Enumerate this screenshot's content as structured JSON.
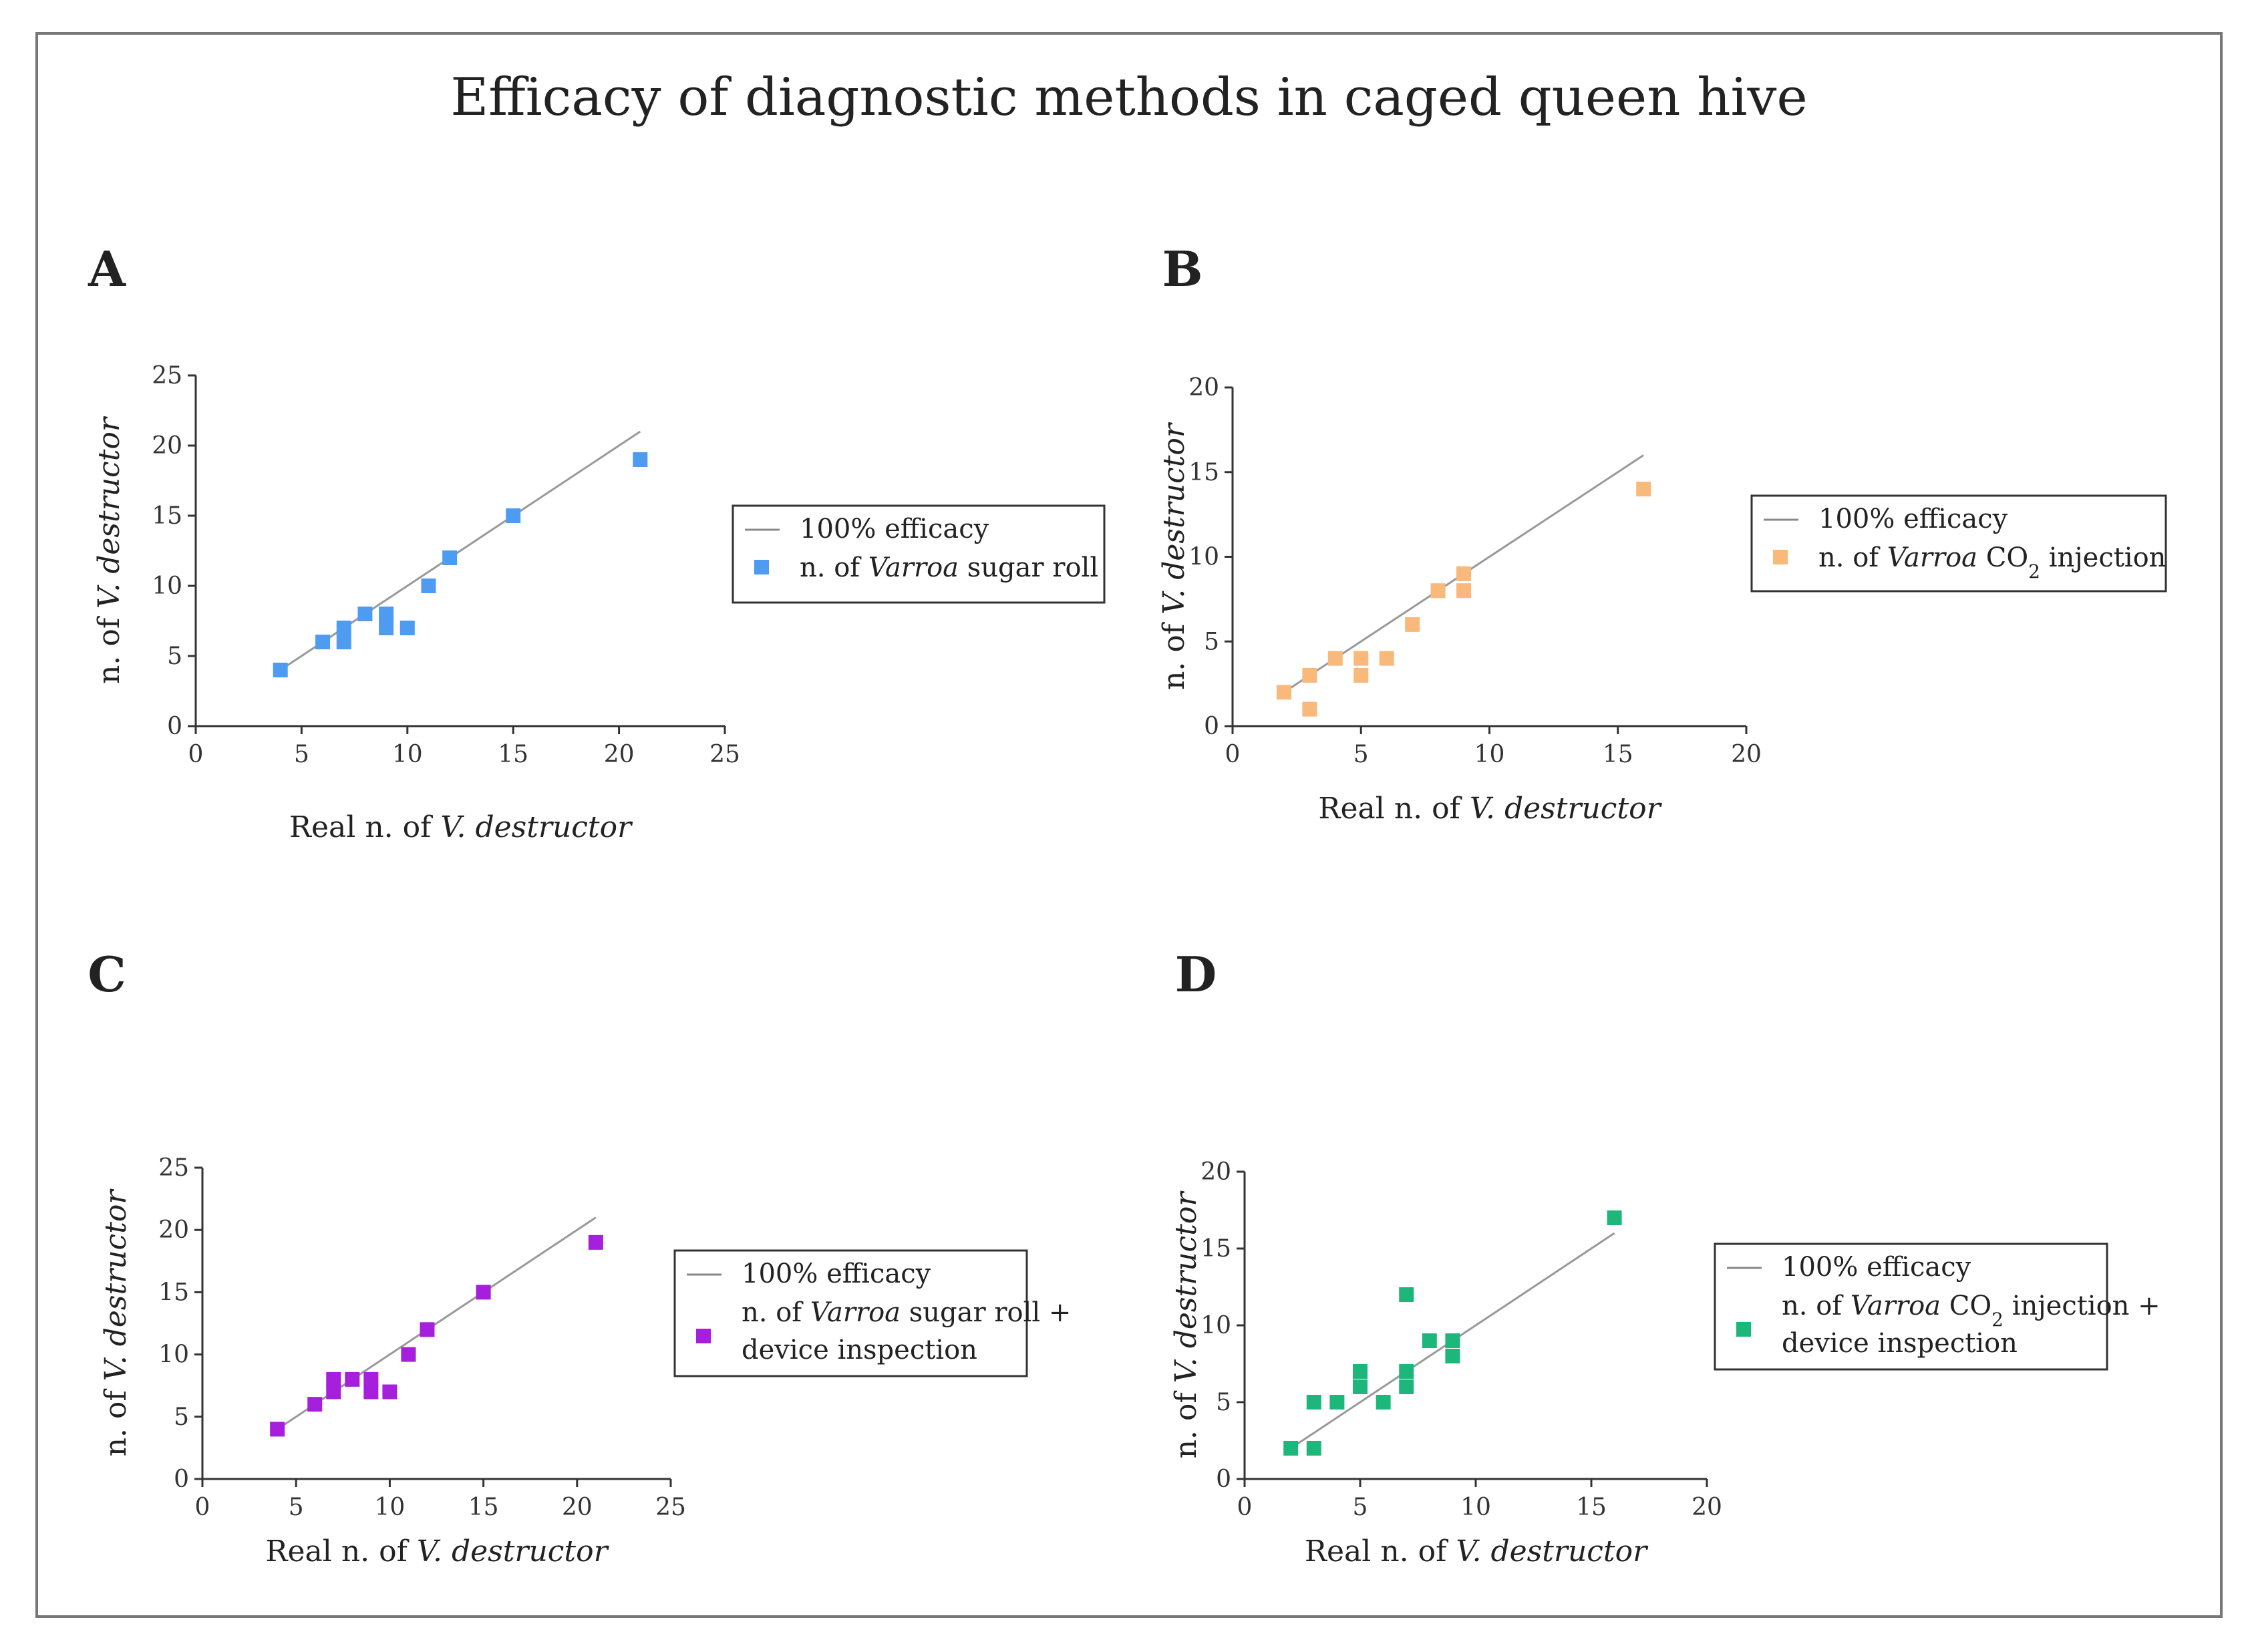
{
  "figure": {
    "title": "Efficacy of diagnostic methods in caged queen hive"
  },
  "chart_data": [
    {
      "panel": "A",
      "type": "scatter",
      "color": "#4d9cf2",
      "xlabel": {
        "prefix": "Real n. of ",
        "italic": "V. destructor"
      },
      "ylabel": {
        "prefix": "n. of ",
        "italic": "V. destructor"
      },
      "xlim": [
        0,
        25
      ],
      "ylim": [
        0,
        25
      ],
      "xticks": [
        0,
        5,
        10,
        15,
        20,
        25
      ],
      "yticks": [
        0,
        5,
        10,
        15,
        20,
        25
      ],
      "line": {
        "name": "100% efficacy",
        "x": [
          4,
          21
        ],
        "y": [
          4,
          21
        ]
      },
      "legend": {
        "line_label": "100% efficacy",
        "series_lines": [
          [
            {
              "t": "n. of "
            },
            {
              "t": "Varroa",
              "i": true
            },
            {
              "t": " sugar roll"
            }
          ]
        ]
      },
      "points": [
        [
          4,
          4
        ],
        [
          6,
          6
        ],
        [
          7,
          7
        ],
        [
          7,
          6
        ],
        [
          8,
          8
        ],
        [
          9,
          8
        ],
        [
          9,
          7
        ],
        [
          10,
          7
        ],
        [
          11,
          10
        ],
        [
          12,
          12
        ],
        [
          15,
          15
        ],
        [
          21,
          19
        ]
      ]
    },
    {
      "panel": "B",
      "type": "scatter",
      "color": "#f9b97a",
      "xlabel": {
        "prefix": "Real n. of ",
        "italic": "V. destructor"
      },
      "ylabel": {
        "prefix": "n. of ",
        "italic": "V. destructor"
      },
      "xlim": [
        0,
        20
      ],
      "ylim": [
        0,
        20
      ],
      "xticks": [
        0,
        5,
        10,
        15,
        20
      ],
      "yticks": [
        0,
        5,
        10,
        15,
        20
      ],
      "line": {
        "name": "100% efficacy",
        "x": [
          2,
          16
        ],
        "y": [
          2,
          16
        ]
      },
      "legend": {
        "line_label": "100% efficacy",
        "series_lines": [
          [
            {
              "t": "n. of "
            },
            {
              "t": "Varroa",
              "i": true
            },
            {
              "t": " CO"
            },
            {
              "t": "2",
              "sub": true
            },
            {
              "t": " injection"
            }
          ]
        ]
      },
      "points": [
        [
          2,
          2
        ],
        [
          3,
          3
        ],
        [
          3,
          1
        ],
        [
          4,
          4
        ],
        [
          5,
          4
        ],
        [
          5,
          3
        ],
        [
          6,
          4
        ],
        [
          7,
          6
        ],
        [
          8,
          8
        ],
        [
          9,
          9
        ],
        [
          9,
          8
        ],
        [
          16,
          14
        ]
      ]
    },
    {
      "panel": "C",
      "type": "scatter",
      "color": "#a51fdc",
      "xlabel": {
        "prefix": "Real n. of ",
        "italic": "V. destructor"
      },
      "ylabel": {
        "prefix": "n. of ",
        "italic": "V. destructor"
      },
      "xlim": [
        0,
        25
      ],
      "ylim": [
        0,
        25
      ],
      "xticks": [
        0,
        5,
        10,
        15,
        20,
        25
      ],
      "yticks": [
        0,
        5,
        10,
        15,
        20,
        25
      ],
      "line": {
        "name": "100% efficacy",
        "x": [
          4,
          21
        ],
        "y": [
          4,
          21
        ]
      },
      "legend": {
        "line_label": "100% efficacy",
        "series_lines": [
          [
            {
              "t": "n. of "
            },
            {
              "t": "Varroa",
              "i": true
            },
            {
              "t": " sugar roll +"
            }
          ],
          [
            {
              "t": "device inspection"
            }
          ]
        ]
      },
      "points": [
        [
          4,
          4
        ],
        [
          6,
          6
        ],
        [
          7,
          8
        ],
        [
          7,
          7
        ],
        [
          8,
          8
        ],
        [
          9,
          8
        ],
        [
          9,
          7
        ],
        [
          10,
          7
        ],
        [
          11,
          10
        ],
        [
          12,
          12
        ],
        [
          15,
          15
        ],
        [
          21,
          19
        ]
      ]
    },
    {
      "panel": "D",
      "type": "scatter",
      "color": "#1db77c",
      "xlabel": {
        "prefix": "Real n. of ",
        "italic": "V. destructor"
      },
      "ylabel": {
        "prefix": "n. of ",
        "italic": "V. destructor"
      },
      "xlim": [
        0,
        20
      ],
      "ylim": [
        0,
        20
      ],
      "xticks": [
        0,
        5,
        10,
        15,
        20
      ],
      "yticks": [
        0,
        5,
        10,
        15,
        20
      ],
      "line": {
        "name": "100% efficacy",
        "x": [
          2,
          16
        ],
        "y": [
          2,
          16
        ]
      },
      "legend": {
        "line_label": "100% efficacy",
        "series_lines": [
          [
            {
              "t": "n. of "
            },
            {
              "t": "Varroa",
              "i": true
            },
            {
              "t": " CO"
            },
            {
              "t": "2",
              "sub": true
            },
            {
              "t": " injection +"
            }
          ],
          [
            {
              "t": "device inspection"
            }
          ]
        ]
      },
      "points": [
        [
          2,
          2
        ],
        [
          3,
          5
        ],
        [
          3,
          2
        ],
        [
          4,
          5
        ],
        [
          5,
          7
        ],
        [
          5,
          6
        ],
        [
          6,
          5
        ],
        [
          7,
          12
        ],
        [
          7,
          7
        ],
        [
          7,
          6
        ],
        [
          8,
          9
        ],
        [
          9,
          9
        ],
        [
          9,
          8
        ],
        [
          16,
          17
        ]
      ]
    }
  ]
}
